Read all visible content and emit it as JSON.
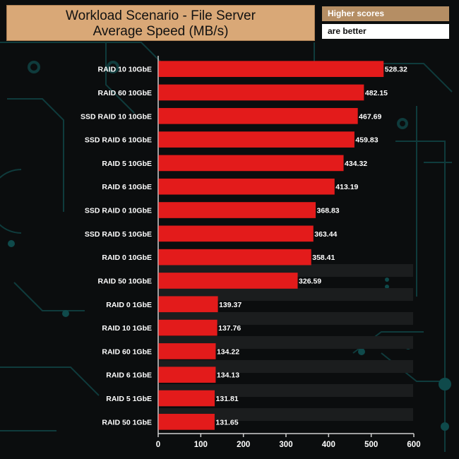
{
  "title": {
    "line1": "Workload Scenario - File Server",
    "line2": "Average Speed (MB/s)"
  },
  "legend": {
    "line1": "Higher scores",
    "line2": "are better"
  },
  "colors": {
    "bar": "#e31b1b",
    "title_bg": "#d9a877",
    "legend_bg": "#b58e64"
  },
  "chart_data": {
    "type": "bar",
    "orientation": "horizontal",
    "title": "Workload Scenario - File Server Average Speed (MB/s)",
    "xlabel": "",
    "ylabel": "",
    "xlim": [
      0,
      600
    ],
    "xticks": [
      0,
      100,
      200,
      300,
      400,
      500,
      600
    ],
    "categories": [
      "RAID 10 10GbE",
      "RAID 60 10GbE",
      "SSD RAID 10 10GbE",
      "SSD RAID 6 10GbE",
      "RAID 5 10GbE",
      "RAID 6 10GbE",
      "SSD RAID 0 10GbE",
      "SSD RAID 5 10GbE",
      "RAID 0 10GbE",
      "RAID 50 10GbE",
      "RAID 0 1GbE",
      "RAID 10 1GbE",
      "RAID 60 1GbE",
      "RAID 6 1GbE",
      "RAID 5 1GbE",
      "RAID 50 1GbE"
    ],
    "values": [
      528.32,
      482.15,
      467.69,
      459.83,
      434.32,
      413.19,
      368.83,
      363.44,
      358.41,
      326.59,
      139.37,
      137.76,
      134.22,
      134.13,
      131.81,
      131.65
    ],
    "value_labels": [
      "528.32",
      "482.15",
      "467.69",
      "459.83",
      "434.32",
      "413.19",
      "368.83",
      "363.44",
      "358.41",
      "326.59",
      "139.37",
      "137.76",
      "134.22",
      "134.13",
      "131.81",
      "131.65"
    ]
  }
}
